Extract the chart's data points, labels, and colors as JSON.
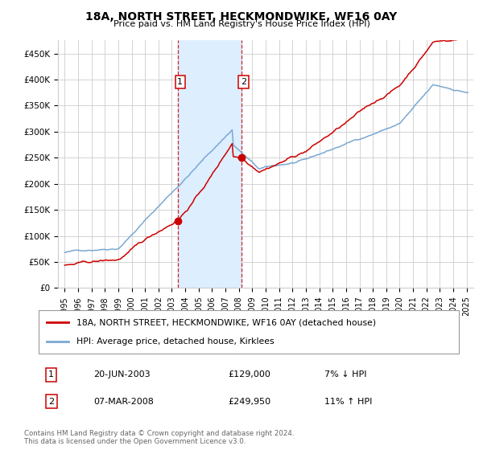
{
  "title": "18A, NORTH STREET, HECKMONDWIKE, WF16 0AY",
  "subtitle": "Price paid vs. HM Land Registry's House Price Index (HPI)",
  "legend_line1": "18A, NORTH STREET, HECKMONDWIKE, WF16 0AY (detached house)",
  "legend_line2": "HPI: Average price, detached house, Kirklees",
  "footnote": "Contains HM Land Registry data © Crown copyright and database right 2024.\nThis data is licensed under the Open Government Licence v3.0.",
  "point1_label": "1",
  "point1_date": "20-JUN-2003",
  "point1_price": "£129,000",
  "point1_hpi": "7% ↓ HPI",
  "point2_label": "2",
  "point2_date": "07-MAR-2008",
  "point2_price": "£249,950",
  "point2_hpi": "11% ↑ HPI",
  "point1_x": 2003.47,
  "point1_y": 129000,
  "point2_x": 2008.18,
  "point2_y": 249950,
  "ylim": [
    0,
    475000
  ],
  "xlim_min": 1994.5,
  "xlim_max": 2025.5,
  "red_color": "#cc0000",
  "blue_color": "#7aa8d2",
  "shade_color": "#ddeeff",
  "grid_color": "#cccccc",
  "background_color": "#ffffff"
}
